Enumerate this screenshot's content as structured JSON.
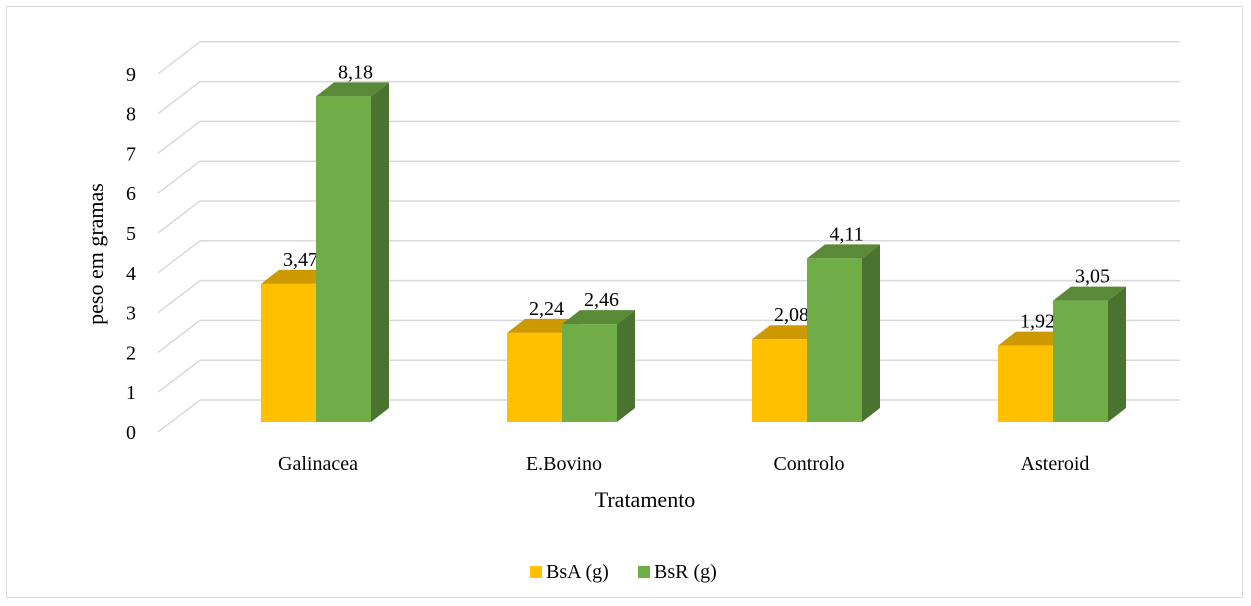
{
  "chart_data": {
    "type": "bar",
    "title": "",
    "xlabel": "Tratamento",
    "ylabel": "peso em gramas",
    "categories": [
      "Galinacea",
      "E.Bovino",
      "Controlo",
      "Asteroid"
    ],
    "series": [
      {
        "name": "BsA (g)",
        "values": [
          3.47,
          2.24,
          2.08,
          1.92
        ],
        "labels": [
          "3,47",
          "2,24",
          "2,08",
          "1,92"
        ]
      },
      {
        "name": "BsR (g)",
        "values": [
          8.18,
          2.46,
          4.11,
          3.05
        ],
        "labels": [
          "8,18",
          "2,46",
          "4,11",
          "3,05"
        ]
      }
    ],
    "yticks": [
      "0",
      "1",
      "2",
      "3",
      "4",
      "5",
      "6",
      "7",
      "8",
      "9"
    ],
    "ylim": [
      0,
      9
    ],
    "grid": true,
    "legend": "bottom",
    "colors": {
      "BsA (g)": {
        "front": "#ffc000",
        "top": "#cc9a00",
        "side": "#b58800"
      },
      "BsR (g)": {
        "front": "#70ad47",
        "top": "#5a8a38",
        "side": "#4a7330"
      },
      "grid": "#d9d9d9"
    }
  }
}
